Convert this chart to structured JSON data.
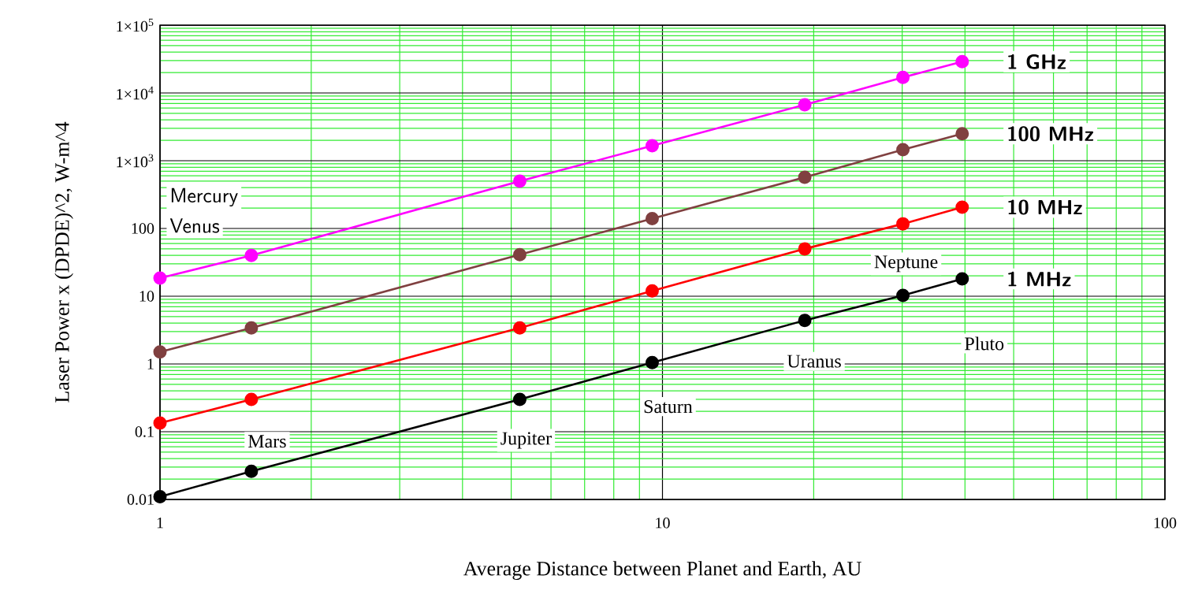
{
  "chart_data": {
    "type": "line",
    "xlabel": "Average Distance between Planet and Earth, AU",
    "ylabel": "Laser Power x (DPDE)^2, W-m^4",
    "x": [
      1,
      1.52,
      5.2,
      9.54,
      19.2,
      30.1,
      39.5
    ],
    "series": [
      {
        "name": "1 GHz",
        "color": "#ff00ff",
        "values": [
          18.5,
          40,
          500,
          1660,
          6700,
          17000,
          29000
        ]
      },
      {
        "name": "100 MHz",
        "color": "#804040",
        "values": [
          1.5,
          3.4,
          41,
          140,
          570,
          1450,
          2500
        ]
      },
      {
        "name": "10 MHz",
        "color": "#ff0000",
        "values": [
          0.134,
          0.3,
          3.4,
          12,
          50,
          117,
          206
        ]
      },
      {
        "name": "1 MHz",
        "color": "#000000",
        "values": [
          0.011,
          0.026,
          0.3,
          1.05,
          4.4,
          10.3,
          18
        ]
      }
    ],
    "log": "xy",
    "xlim": [
      1,
      100
    ],
    "xticks": [
      1,
      {
        "value": 2,
        "label": null
      },
      {
        "value": 3,
        "label": null
      },
      {
        "value": 4,
        "label": null
      },
      {
        "value": 5,
        "label": null
      },
      {
        "value": 6,
        "label": null
      },
      {
        "value": 7,
        "label": null
      },
      {
        "value": 8,
        "label": null
      },
      {
        "value": 9,
        "label": null
      },
      10,
      {
        "value": 20,
        "label": null
      },
      {
        "value": 30,
        "label": null
      },
      {
        "value": 40,
        "label": null
      },
      {
        "value": 50,
        "label": null
      },
      {
        "value": 60,
        "label": null
      },
      {
        "value": 70,
        "label": null
      },
      {
        "value": 80,
        "label": null
      },
      {
        "value": 90,
        "label": null
      },
      100
    ],
    "ylim": [
      0.01,
      100000
    ],
    "yticks": [
      0.01,
      {
        "value": 0.02,
        "label": null
      },
      {
        "value": 0.03,
        "label": null
      },
      {
        "value": 0.04,
        "label": null
      },
      {
        "value": 0.05,
        "label": null
      },
      {
        "value": 0.06,
        "label": null
      },
      {
        "value": 0.07,
        "label": null
      },
      {
        "value": 0.08,
        "label": null
      },
      {
        "value": 0.09,
        "label": null
      },
      0.1,
      {
        "value": 0.2,
        "label": null
      },
      {
        "value": 0.3,
        "label": null
      },
      {
        "value": 0.4,
        "label": null
      },
      {
        "value": 0.5,
        "label": null
      },
      {
        "value": 0.6,
        "label": null
      },
      {
        "value": 0.7,
        "label": null
      },
      {
        "value": 0.8,
        "label": null
      },
      {
        "value": 0.9,
        "label": null
      },
      1,
      {
        "value": 2,
        "label": null
      },
      {
        "value": 3,
        "label": null
      },
      {
        "value": 4,
        "label": null
      },
      {
        "value": 5,
        "label": null
      },
      {
        "value": 6,
        "label": null
      },
      {
        "value": 7,
        "label": null
      },
      {
        "value": 8,
        "label": null
      },
      {
        "value": 9,
        "label": null
      },
      10,
      {
        "value": 20,
        "label": null
      },
      {
        "value": 30,
        "label": null
      },
      {
        "value": 40,
        "label": null
      },
      {
        "value": 50,
        "label": null
      },
      {
        "value": 60,
        "label": null
      },
      {
        "value": 70,
        "label": null
      },
      {
        "value": 80,
        "label": null
      },
      {
        "value": 90,
        "label": null
      },
      100,
      {
        "value": 200,
        "label": null
      },
      {
        "value": 300,
        "label": null
      },
      {
        "value": 400,
        "label": null
      },
      {
        "value": 500,
        "label": null
      },
      {
        "value": 600,
        "label": null
      },
      {
        "value": 700,
        "label": null
      },
      {
        "value": 800,
        "label": null
      },
      {
        "value": 900,
        "label": null
      },
      {
        "value": 1000,
        "label": "1×10$^{3}$"
      },
      {
        "value": 2000,
        "label": null
      },
      {
        "value": 3000,
        "label": null
      },
      {
        "value": 4000,
        "label": null
      },
      {
        "value": 5000,
        "label": null
      },
      {
        "value": 6000,
        "label": null
      },
      {
        "value": 7000,
        "label": null
      },
      {
        "value": 8000,
        "label": null
      },
      {
        "value": 9000,
        "label": null
      },
      {
        "value": 10000,
        "label": "1×10$^{4}$"
      },
      {
        "value": 20000,
        "label": null
      },
      {
        "value": 30000,
        "label": null
      },
      {
        "value": 40000,
        "label": null
      },
      {
        "value": 50000,
        "label": null
      },
      {
        "value": 60000,
        "label": null
      },
      {
        "value": 70000,
        "label": null
      },
      {
        "value": 80000,
        "label": null
      },
      {
        "value": 90000,
        "label": null
      },
      {
        "value": 100000,
        "label": "1×10$^{5}$"
      }
    ],
    "grid": true,
    "marker": "circle",
    "line_style": "solid",
    "annotations": [
      "Mercury",
      "Venus",
      "Mars",
      "Jupiter",
      "Saturn",
      "Uranus",
      "Neptune",
      "Pluto"
    ]
  }
}
